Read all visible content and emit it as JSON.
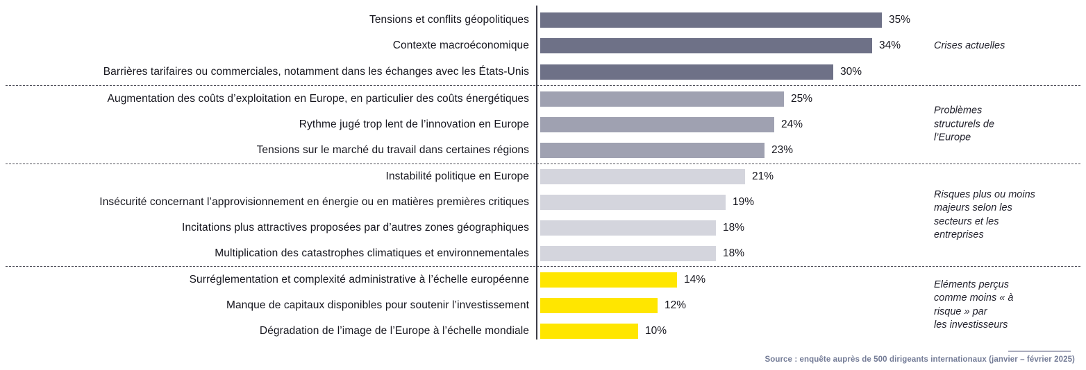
{
  "chart_data": {
    "type": "bar",
    "orientation": "horizontal",
    "title": "",
    "xlabel": "",
    "ylabel": "",
    "unit": "%",
    "xlim": [
      0,
      35
    ],
    "grid": false,
    "legend_position": "right-annotations",
    "groups": [
      {
        "name": "Crises actuelles",
        "annotation": "Crises actuelles",
        "color": "#6e7187",
        "items": [
          {
            "label": "Tensions et conflits géopolitiques",
            "value": 35,
            "value_label": "35%"
          },
          {
            "label": "Contexte macroéconomique",
            "value": 34,
            "value_label": "34%"
          },
          {
            "label": "Barrières tarifaires ou commerciales, notamment dans les échanges avec les États-Unis",
            "value": 30,
            "value_label": "30%"
          }
        ]
      },
      {
        "name": "Problèmes structurels de l’Europe",
        "annotation": "Problèmes\nstructurels de\nl’Europe",
        "color": "#9fa1b1",
        "items": [
          {
            "label": "Augmentation des coûts d’exploitation en Europe, en particulier des coûts énergétiques",
            "value": 25,
            "value_label": "25%"
          },
          {
            "label": "Rythme jugé trop lent de l’innovation en Europe",
            "value": 24,
            "value_label": "24%"
          },
          {
            "label": "Tensions sur le marché du travail dans certaines régions",
            "value": 23,
            "value_label": "23%"
          }
        ]
      },
      {
        "name": "Risques plus ou moins majeurs selon les secteurs et les entreprises",
        "annotation": "Risques plus ou moins\nmajeurs selon les\nsecteurs et les\nentreprises",
        "color": "#d4d5dd",
        "items": [
          {
            "label": "Instabilité politique en Europe",
            "value": 21,
            "value_label": "21%"
          },
          {
            "label": "Insécurité concernant l’approvisionnement en énergie ou en matières premières critiques",
            "value": 19,
            "value_label": "19%"
          },
          {
            "label": "Incitations plus attractives proposées par d’autres zones géographiques",
            "value": 18,
            "value_label": "18%"
          },
          {
            "label": "Multiplication des catastrophes climatiques et environnementales",
            "value": 18,
            "value_label": "18%"
          }
        ]
      },
      {
        "name": "Eléments perçus comme moins « à risque » par les investisseurs",
        "annotation": "Eléments perçus\ncomme moins « à\nrisque » par\nles investisseurs",
        "color": "#ffe600",
        "items": [
          {
            "label": "Surréglementation et complexité administrative à l’échelle européenne",
            "value": 14,
            "value_label": "14%"
          },
          {
            "label": "Manque de capitaux disponibles pour soutenir l’investissement",
            "value": 12,
            "value_label": "12%"
          },
          {
            "label": "Dégradation de l’image de l’Europe à l’échelle mondiale",
            "value": 10,
            "value_label": "10%"
          }
        ]
      }
    ],
    "source": "Source : enquête auprès de 500 dirigeants internationaux (janvier – février 2025)"
  }
}
